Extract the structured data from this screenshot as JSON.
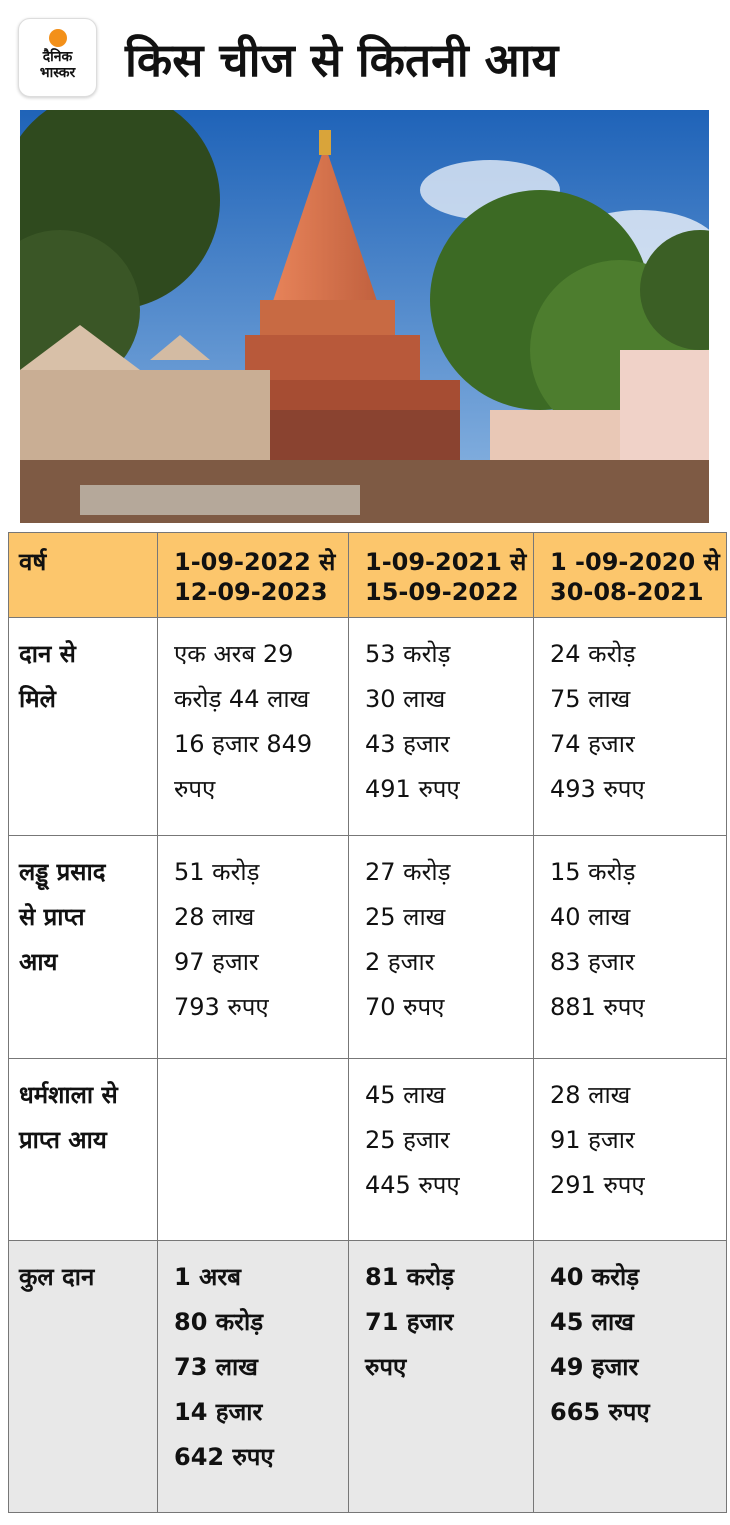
{
  "header": {
    "logo": [
      "दैनिक",
      "भास्कर"
    ],
    "title": "किस चीज से कितनी आय"
  },
  "table": {
    "columns": [
      [
        "वर्ष"
      ],
      [
        "1-09-2022 से",
        "12-09-2023"
      ],
      [
        "1-09-2021 से",
        "15-09-2022"
      ],
      [
        "1 -09-2020 से",
        "30-08-2021"
      ]
    ],
    "rows": [
      [
        [
          "दान से",
          "मिले"
        ],
        [
          "एक अरब 29",
          "करोड़ 44 लाख",
          "16 हजार 849",
          "रुपए"
        ],
        [
          "53 करोड़",
          "30 लाख",
          "43 हजार",
          "491 रुपए"
        ],
        [
          "24 करोड़",
          "75 लाख",
          "74 हजार",
          "493 रुपए"
        ]
      ],
      [
        [
          "लड्डू प्रसाद",
          "से प्राप्त",
          "आय"
        ],
        [
          "51 करोड़",
          "28 लाख",
          "97 हजार",
          "793 रुपए"
        ],
        [
          "27 करोड़",
          "25 लाख",
          "2 हजार",
          "70 रुपए"
        ],
        [
          "15 करोड़",
          "40 लाख",
          "83 हजार",
          "881 रुपए"
        ]
      ],
      [
        [
          "धर्मशाला से",
          "प्राप्त आय"
        ],
        [],
        [
          "45 लाख",
          "25 हजार",
          "445 रुपए"
        ],
        [
          "28 लाख",
          "91 हजार",
          "291 रुपए"
        ]
      ],
      [
        [
          "कुल दान"
        ],
        [
          "1 अरब",
          "80 करोड़",
          "73 लाख",
          "14 हजार",
          "642 रुपए"
        ],
        [
          "81 करोड़",
          "71 हजार",
          "रुपए"
        ],
        [
          "40 करोड़",
          "45 लाख",
          "49 हजार",
          "665 रुपए"
        ]
      ]
    ]
  }
}
